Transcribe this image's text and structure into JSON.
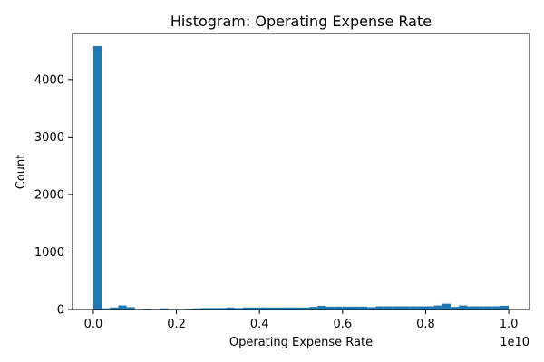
{
  "chart_data": {
    "type": "bar",
    "title": "Histogram:  Operating Expense Rate",
    "xlabel": "Operating Expense Rate",
    "ylabel": "Count",
    "x_offset_text": "1e10",
    "xlim": [
      -0.05,
      1.05
    ],
    "ylim": [
      0,
      4800
    ],
    "x_ticks": [
      0.0,
      0.2,
      0.4,
      0.6,
      0.8,
      1.0
    ],
    "x_tick_labels": [
      "0.0",
      "0.2",
      "0.4",
      "0.6",
      "0.8",
      "1.0"
    ],
    "y_ticks": [
      0,
      1000,
      2000,
      3000,
      4000
    ],
    "y_tick_labels": [
      "0",
      "1000",
      "2000",
      "3000",
      "4000"
    ],
    "grid": false,
    "bar_color": "#1f77b4",
    "bin_start": 0.0,
    "bin_width": 0.02,
    "values": [
      4580,
      20,
      35,
      70,
      40,
      10,
      15,
      10,
      20,
      10,
      10,
      15,
      20,
      25,
      25,
      25,
      35,
      25,
      35,
      35,
      35,
      35,
      35,
      35,
      35,
      35,
      45,
      65,
      50,
      50,
      50,
      50,
      50,
      40,
      55,
      55,
      55,
      55,
      55,
      55,
      55,
      70,
      100,
      45,
      70,
      55,
      55,
      55,
      55,
      65
    ]
  }
}
